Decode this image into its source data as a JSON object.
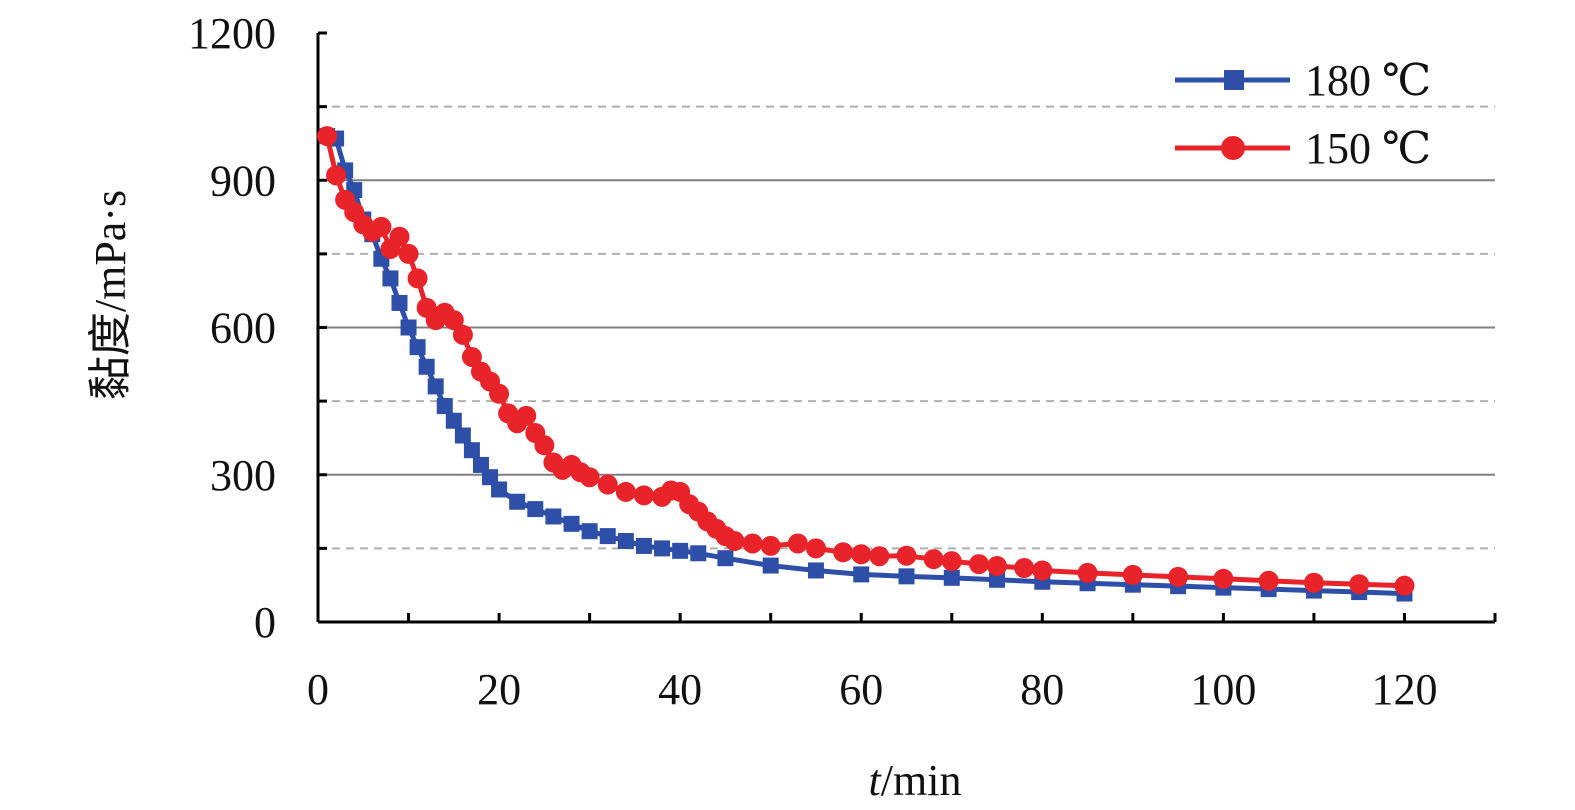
{
  "chart_data": {
    "type": "line",
    "xlabel_italic": "t",
    "xlabel_unit": "/min",
    "ylabel": "黏度/mPa·s",
    "xlim": [
      0,
      130
    ],
    "ylim": [
      0,
      1200
    ],
    "x_ticks": [
      0,
      20,
      40,
      60,
      80,
      100,
      120
    ],
    "x_tick_labels": [
      "0",
      "20",
      "40",
      "60",
      "80",
      "100",
      "120"
    ],
    "y_ticks": [
      0,
      300,
      600,
      900,
      1200
    ],
    "y_tick_labels": [
      "0",
      "300",
      "600",
      "900",
      "1200"
    ],
    "grid": {
      "solid": [
        300,
        600,
        900
      ],
      "dashed": [
        150,
        450,
        750,
        1050
      ]
    },
    "legend": "top-right",
    "series": [
      {
        "name": "180 ℃",
        "color": "#2E4FA8",
        "marker": "square",
        "x": [
          1,
          2,
          3,
          4,
          5,
          6,
          7,
          8,
          9,
          10,
          11,
          12,
          13,
          14,
          15,
          16,
          17,
          18,
          19,
          20,
          22,
          24,
          26,
          28,
          30,
          32,
          34,
          36,
          38,
          40,
          42,
          45,
          50,
          55,
          60,
          65,
          70,
          75,
          80,
          85,
          90,
          95,
          100,
          105,
          110,
          115,
          120
        ],
        "y": [
          990,
          985,
          920,
          880,
          820,
          790,
          740,
          700,
          650,
          600,
          560,
          520,
          480,
          440,
          410,
          380,
          350,
          320,
          295,
          270,
          245,
          230,
          215,
          200,
          185,
          175,
          165,
          155,
          150,
          145,
          140,
          130,
          115,
          105,
          97,
          93,
          90,
          86,
          82,
          79,
          76,
          73,
          70,
          67,
          64,
          61,
          58
        ]
      },
      {
        "name": "150 ℃",
        "color": "#E8232A",
        "marker": "circle",
        "x": [
          1,
          2,
          3,
          4,
          5,
          6,
          7,
          8,
          9,
          10,
          11,
          12,
          13,
          14,
          15,
          16,
          17,
          18,
          19,
          20,
          21,
          22,
          23,
          24,
          25,
          26,
          27,
          28,
          29,
          30,
          32,
          34,
          36,
          38,
          39,
          40,
          41,
          42,
          43,
          44,
          45,
          46,
          48,
          50,
          53,
          55,
          58,
          60,
          62,
          65,
          68,
          70,
          73,
          75,
          78,
          80,
          85,
          90,
          95,
          100,
          105,
          110,
          115,
          120
        ],
        "y": [
          990,
          910,
          860,
          835,
          810,
          795,
          805,
          760,
          785,
          750,
          700,
          640,
          615,
          630,
          615,
          585,
          540,
          510,
          490,
          465,
          425,
          405,
          420,
          385,
          360,
          325,
          310,
          320,
          305,
          295,
          280,
          265,
          258,
          255,
          268,
          265,
          240,
          225,
          205,
          190,
          175,
          165,
          160,
          155,
          160,
          150,
          142,
          138,
          134,
          135,
          128,
          124,
          118,
          114,
          110,
          105,
          100,
          96,
          92,
          88,
          84,
          80,
          77,
          74
        ]
      }
    ]
  }
}
